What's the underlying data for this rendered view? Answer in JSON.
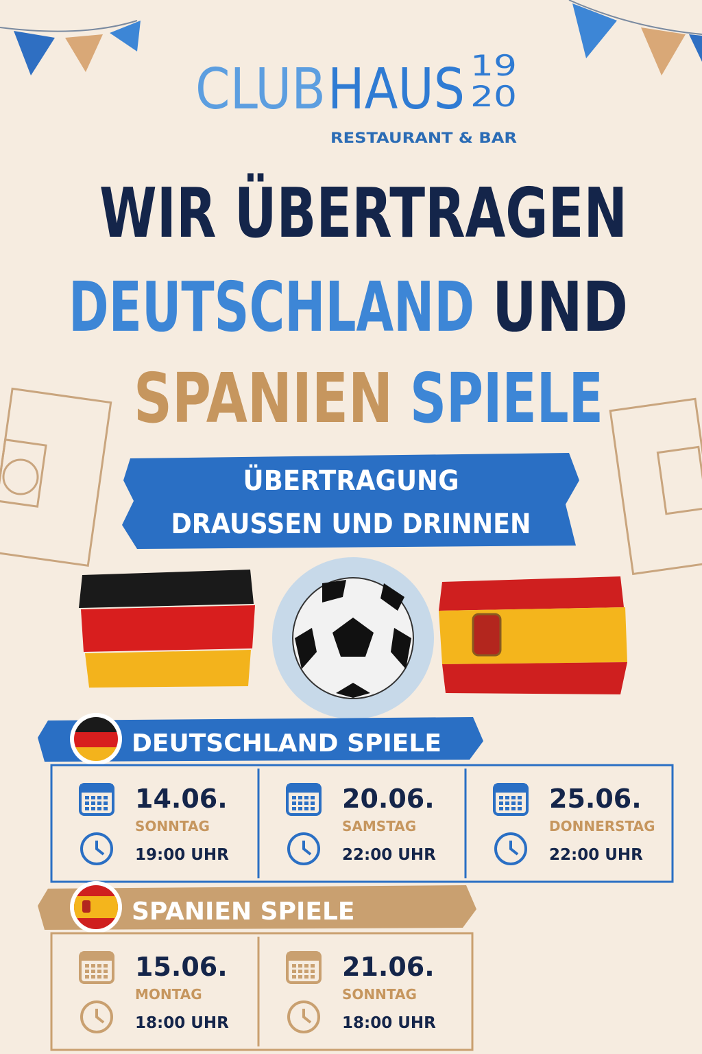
{
  "logo": {
    "club": "CLUB",
    "haus": "HAUS",
    "year_top": "19",
    "year_bottom": "20",
    "subtitle": "RESTAURANT & BAR"
  },
  "headline": {
    "line1": "WIR ÜBERTRAGEN",
    "germany": "DEUTSCHLAND",
    "and": "UND",
    "spain": "SPANIEN",
    "games": "SPIELE"
  },
  "banner": {
    "line1": "ÜBERTRAGUNG",
    "line2": "DRAUSSEN UND DRINNEN"
  },
  "germany": {
    "title": "DEUTSCHLAND SPIELE",
    "matches": [
      {
        "date": "14.06.",
        "day": "SONNTAG",
        "time": "19:00 UHR"
      },
      {
        "date": "20.06.",
        "day": "SAMSTAG",
        "time": "22:00 UHR"
      },
      {
        "date": "25.06.",
        "day": "DONNERSTAG",
        "time": "22:00 UHR"
      }
    ]
  },
  "spain": {
    "title": "SPANIEN SPIELE",
    "matches": [
      {
        "date": "15.06.",
        "day": "MONTAG",
        "time": "18:00 UHR"
      },
      {
        "date": "21.06.",
        "day": "SONNTAG",
        "time": "18:00 UHR"
      }
    ]
  }
}
